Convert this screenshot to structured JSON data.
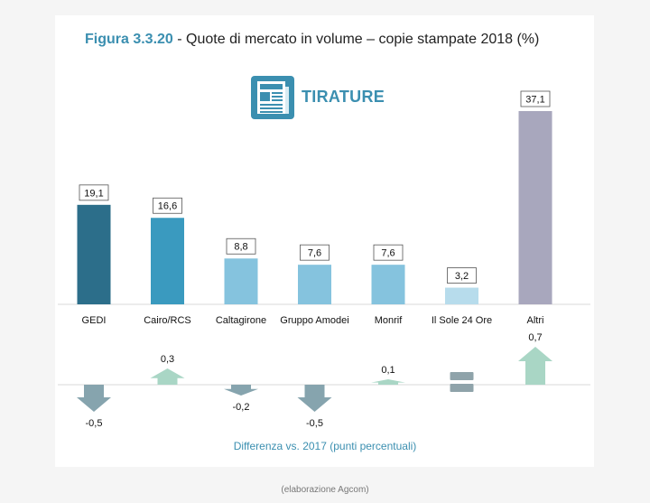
{
  "header": {
    "figure_label": "Figura 3.3.20",
    "title_rest": " - Quote di mercato in volume – copie stampate 2018 (%)"
  },
  "badge": {
    "label": "TIRATURE",
    "icon": "newspaper-icon"
  },
  "chart_data": {
    "type": "bar",
    "title": "Figura 3.3.20 - Quote di mercato in volume – copie stampate 2018 (%)",
    "categories": [
      "GEDI",
      "Cairo/RCS",
      "Caltagirone",
      "Gruppo Amodei",
      "Monrif",
      "Il Sole 24 Ore",
      "Altri"
    ],
    "values": [
      19.1,
      16.6,
      8.8,
      7.6,
      7.6,
      3.2,
      37.1
    ],
    "value_labels": [
      "19,1",
      "16,6",
      "8,8",
      "7,6",
      "7,6",
      "3,2",
      "37,1"
    ],
    "bar_colors": [
      "#2c6e8a",
      "#3a9abf",
      "#85c3de",
      "#85c3de",
      "#85c3de",
      "#b7dcec",
      "#a8a7bd"
    ],
    "ylim": [
      0,
      37.1
    ],
    "grid": false,
    "legend": "none",
    "diff": {
      "label": "Differenza vs. 2017 (punti percentuali)",
      "values": [
        -0.5,
        0.3,
        -0.2,
        -0.5,
        0.1,
        0,
        0.7
      ],
      "value_labels": [
        "-0,5",
        "0,3",
        "-0,2",
        "-0,5",
        "0,1",
        "",
        "0,7"
      ],
      "up_color": "#a9d6c5",
      "down_color": "#86a4ae",
      "equal_color": "#8fa3aa"
    }
  },
  "footer": {
    "source": "(elaborazione Agcom)"
  }
}
